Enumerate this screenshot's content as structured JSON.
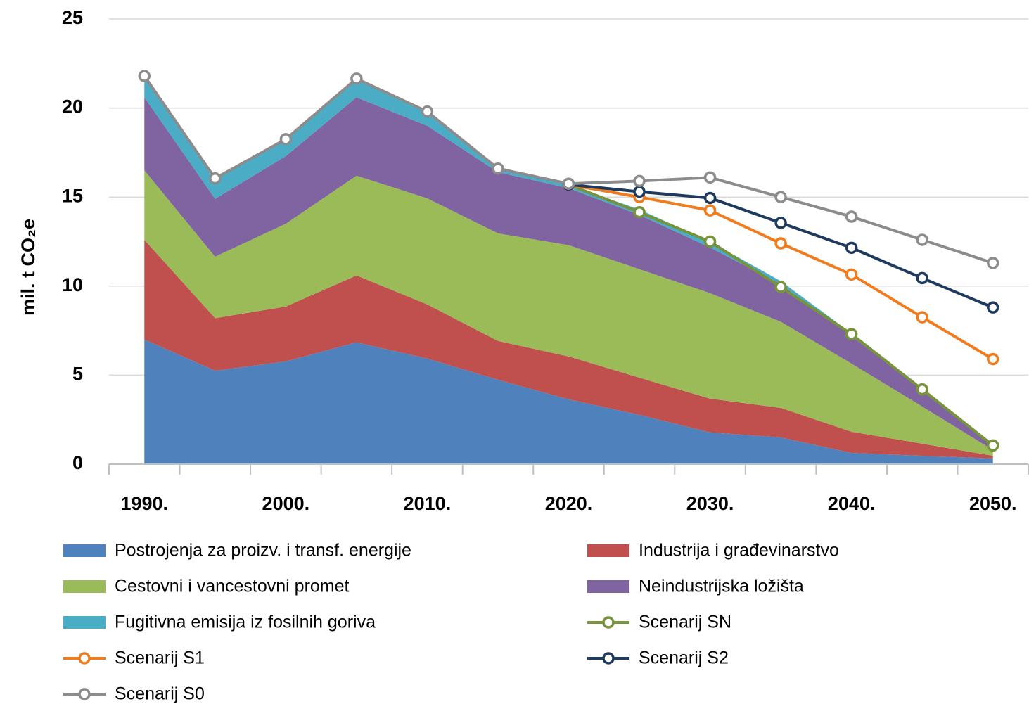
{
  "chart_data": {
    "type": "stacked-area-line",
    "ylabel": "mil. t CO₂e",
    "categories": [
      "1990.",
      null,
      "2000.",
      null,
      "2010.",
      null,
      "2020.",
      null,
      "2030.",
      null,
      "2040.",
      null,
      "2050."
    ],
    "ylim": [
      0,
      25
    ],
    "yticks": [
      0,
      5,
      10,
      15,
      20,
      25
    ],
    "grid": true,
    "series": [
      {
        "name": "Postrojenja za proizv. i transf. energije",
        "type": "area",
        "color": "#4f81bd",
        "values": [
          7.0,
          5.25,
          5.77,
          6.84,
          5.93,
          4.74,
          3.64,
          2.77,
          1.78,
          1.5,
          0.63,
          0.47,
          0.32
        ]
      },
      {
        "name": "Industrija i građevinarstvo",
        "type": "area",
        "color": "#c0504d",
        "values": [
          5.6,
          2.95,
          3.08,
          3.76,
          3.04,
          2.18,
          2.41,
          2.09,
          1.9,
          1.66,
          1.19,
          0.68,
          0.15
        ]
      },
      {
        "name": "Cestovni i vancestovni promet",
        "type": "area",
        "color": "#9bbb59",
        "values": [
          3.9,
          3.45,
          4.65,
          5.6,
          5.96,
          6.04,
          6.25,
          6.09,
          5.92,
          4.84,
          3.83,
          2.09,
          0.32
        ]
      },
      {
        "name": "Neindustrijska ložišta",
        "type": "area",
        "color": "#8064a2",
        "values": [
          4.1,
          3.25,
          3.8,
          4.4,
          4.07,
          3.44,
          3.2,
          3.05,
          2.57,
          2.1,
          1.54,
          0.91,
          0.16
        ]
      },
      {
        "name": "Fugitivna emisija iz fosilnih goriva",
        "type": "area",
        "color": "#4bacc6",
        "values": [
          1.2,
          1.2,
          1.0,
          1.1,
          0.83,
          0.3,
          0.2,
          0.3,
          0.33,
          0.18,
          0.16,
          0.12,
          0.04
        ]
      },
      {
        "name": "Scenarij SN",
        "type": "line",
        "color": "#77933c",
        "values": [
          null,
          null,
          null,
          null,
          null,
          null,
          15.7,
          14.15,
          12.5,
          9.95,
          7.3,
          4.2,
          1.05
        ]
      },
      {
        "name": "Scenarij S1",
        "type": "line",
        "color": "#f07c1d",
        "values": [
          null,
          null,
          null,
          null,
          null,
          null,
          15.7,
          15.0,
          14.25,
          12.4,
          10.65,
          8.25,
          5.9
        ]
      },
      {
        "name": "Scenarij S2",
        "type": "line",
        "color": "#1f3a5f",
        "values": [
          null,
          null,
          null,
          null,
          null,
          null,
          15.7,
          15.3,
          14.95,
          13.55,
          12.15,
          10.45,
          8.8
        ]
      },
      {
        "name": "Scenarij S0",
        "type": "line",
        "color": "#8c8c8c",
        "values": [
          21.8,
          16.05,
          18.25,
          21.65,
          19.8,
          16.6,
          15.75,
          15.9,
          16.1,
          15.0,
          13.9,
          12.6,
          11.3
        ]
      }
    ]
  }
}
